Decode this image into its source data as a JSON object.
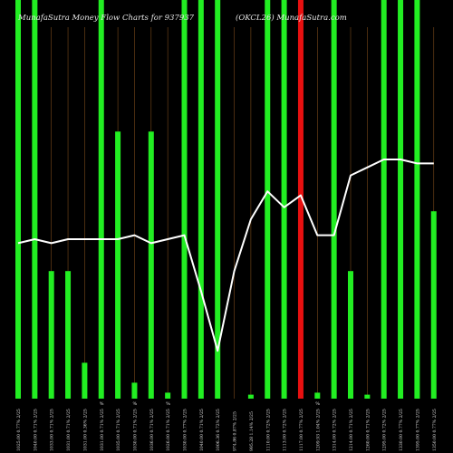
{
  "chart_data": {
    "type": "bar",
    "title_left": "MunafaSutra  Money Flow  Charts for 937937",
    "title_right": "(OKCL26)  MunafaSutra.com",
    "bar_colors": {
      "up": "#22ee22",
      "down": "#e81010"
    },
    "line_color": "#ffffff",
    "gridline_color": "#7a4a1a",
    "background": "#000000",
    "ylim": [
      0,
      100
    ],
    "categories": [
      "1025.00 0.77% 2/25",
      "1040.00 0.71% 2/25",
      "1033.00 0.71% 2/25",
      "1031.00 0.71% 2/25",
      "1031.00 0.36% 2/25",
      "1031.00 0.71% 2/25",
      "1035.00 0.71% 2/25",
      "1030.00 0.71% 2/25",
      "1036.00 0.71% 2/25",
      "1026.00 0.71% 2/25",
      "1030.00 0.77% 2/25",
      "1040.00 0.71% 2/25",
      "1006.36 0.72% 2/25",
      "974.86 0.87% 2/25",
      "995.28 1.14% 2/25",
      "1110.00 0.72% 2/25",
      "1113.00 0.72% 2/25",
      "1117.00 0.77% 2/25",
      "1209.93 1.04% 2/25",
      "1314.00 0.72% 2/25",
      "1214.00 0.71% 2/25",
      "1260.00 0.71% 2/25",
      "1295.00 0.72% 2/25",
      "1330.00 0.77% 2/25",
      "1395.00 0.77% 2/25",
      "1350.00 0.77% 2/25"
    ],
    "bar_values": [
      100,
      100,
      32,
      32,
      9,
      100,
      67,
      4,
      67,
      1.5,
      100,
      100,
      100,
      0,
      1,
      100,
      100,
      100,
      1.5,
      100,
      32,
      1,
      100,
      100,
      100,
      47
    ],
    "bar_directions": [
      "up",
      "up",
      "up",
      "up",
      "up",
      "up",
      "up",
      "up",
      "up",
      "up",
      "up",
      "up",
      "up",
      "up",
      "up",
      "up",
      "up",
      "down",
      "up",
      "up",
      "up",
      "up",
      "up",
      "up",
      "up",
      "up"
    ],
    "line_values": [
      39,
      40,
      39,
      40,
      40,
      40,
      40,
      41,
      39,
      40,
      41,
      27,
      12,
      32,
      45,
      52,
      48,
      51,
      41,
      41,
      56,
      58,
      60,
      60,
      59,
      59
    ],
    "pct_markers": [
      "",
      "",
      "",
      "",
      "",
      "%",
      "",
      "%",
      "",
      "%",
      "",
      "",
      "",
      "",
      "",
      "",
      "",
      "",
      "%",
      "",
      "",
      "",
      "",
      "",
      "",
      ""
    ]
  }
}
